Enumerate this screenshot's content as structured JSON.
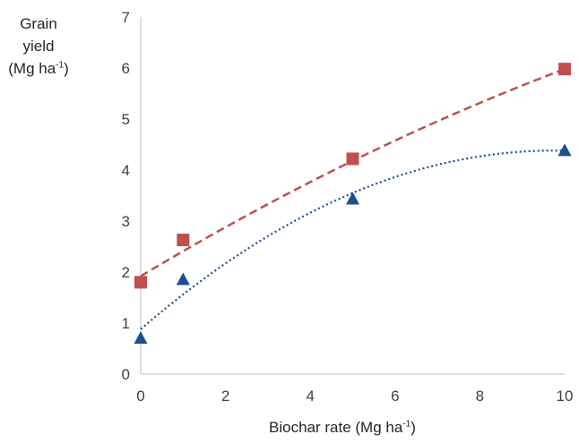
{
  "chart_data": {
    "type": "scatter",
    "ylabel": {
      "line1": "Grain yield",
      "line2_prefix": "(Mg ha",
      "line2_sup": "-1",
      "line2_suffix": ")"
    },
    "xlabel": {
      "prefix": "Biochar rate (Mg ha",
      "sup": "-1",
      "suffix": ")"
    },
    "xlim": [
      0,
      10
    ],
    "ylim": [
      0,
      7
    ],
    "x_ticks": [
      0,
      2,
      4,
      6,
      8,
      10
    ],
    "y_ticks": [
      0,
      1,
      2,
      3,
      4,
      5,
      6,
      7
    ],
    "grid": false,
    "legend": "none",
    "series": [
      {
        "marker": "square",
        "color": "#c0504d",
        "x": [
          0,
          1,
          5,
          10
        ],
        "y": [
          1.8,
          2.63,
          4.22,
          5.98
        ],
        "trendline": {
          "style": "dashed",
          "color": "#c0504d",
          "x": [
            0,
            5,
            10
          ],
          "y": [
            1.92,
            4.18,
            5.98
          ]
        }
      },
      {
        "marker": "triangle",
        "color": "#1f4e8c",
        "x": [
          0,
          1,
          5,
          10
        ],
        "y": [
          0.7,
          1.85,
          3.43,
          4.38
        ],
        "trendline": {
          "style": "dotted",
          "color": "#1f4e8c",
          "x": [
            0,
            5,
            10
          ],
          "y": [
            0.88,
            3.55,
            4.38
          ]
        }
      }
    ]
  }
}
